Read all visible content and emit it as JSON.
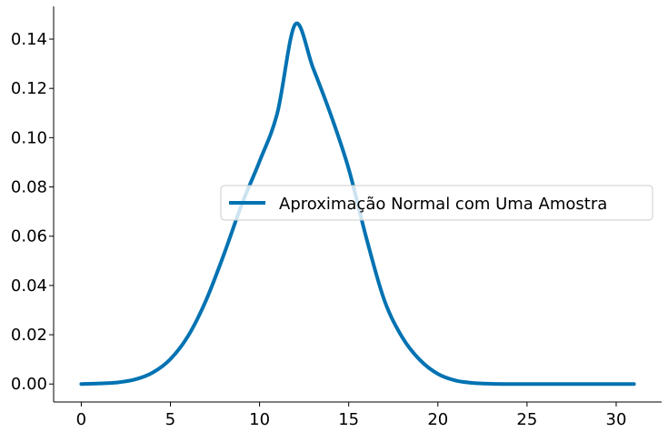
{
  "chart_data": {
    "type": "line",
    "title": "",
    "xlabel": "",
    "ylabel": "",
    "xlim": [
      -1.55,
      32.55
    ],
    "ylim": [
      -0.0073,
      0.1533
    ],
    "x_ticks": [
      0,
      5,
      10,
      15,
      20,
      25,
      30
    ],
    "y_ticks": [
      0.0,
      0.02,
      0.04,
      0.06,
      0.08,
      0.1,
      0.12,
      0.14
    ],
    "x_tick_labels": [
      "0",
      "5",
      "10",
      "15",
      "20",
      "25",
      "30"
    ],
    "y_tick_labels": [
      "0.00",
      "0.02",
      "0.04",
      "0.06",
      "0.08",
      "0.10",
      "0.12",
      "0.14"
    ],
    "grid": false,
    "legend_position": "center-right",
    "series": [
      {
        "name": "Aproximação Normal com Uma Amostra",
        "color": "#0072b2",
        "x": [
          0,
          1,
          2,
          3,
          4,
          5,
          6,
          7,
          8,
          9,
          10,
          11,
          12,
          13,
          14,
          15,
          16,
          17,
          18,
          19,
          20,
          21,
          22,
          23,
          24,
          25,
          26,
          27,
          28,
          29,
          30,
          31
        ],
        "y": [
          0.0,
          0.0002,
          0.0006,
          0.0018,
          0.0046,
          0.0101,
          0.0196,
          0.034,
          0.0526,
          0.0729,
          0.0904,
          0.1101,
          0.146,
          0.1283,
          0.1092,
          0.0873,
          0.059,
          0.034,
          0.019,
          0.0097,
          0.0041,
          0.0014,
          0.0004,
          0.0001,
          0.0,
          0.0,
          0.0,
          0.0,
          0.0,
          0.0,
          0.0,
          0.0
        ]
      }
    ]
  }
}
